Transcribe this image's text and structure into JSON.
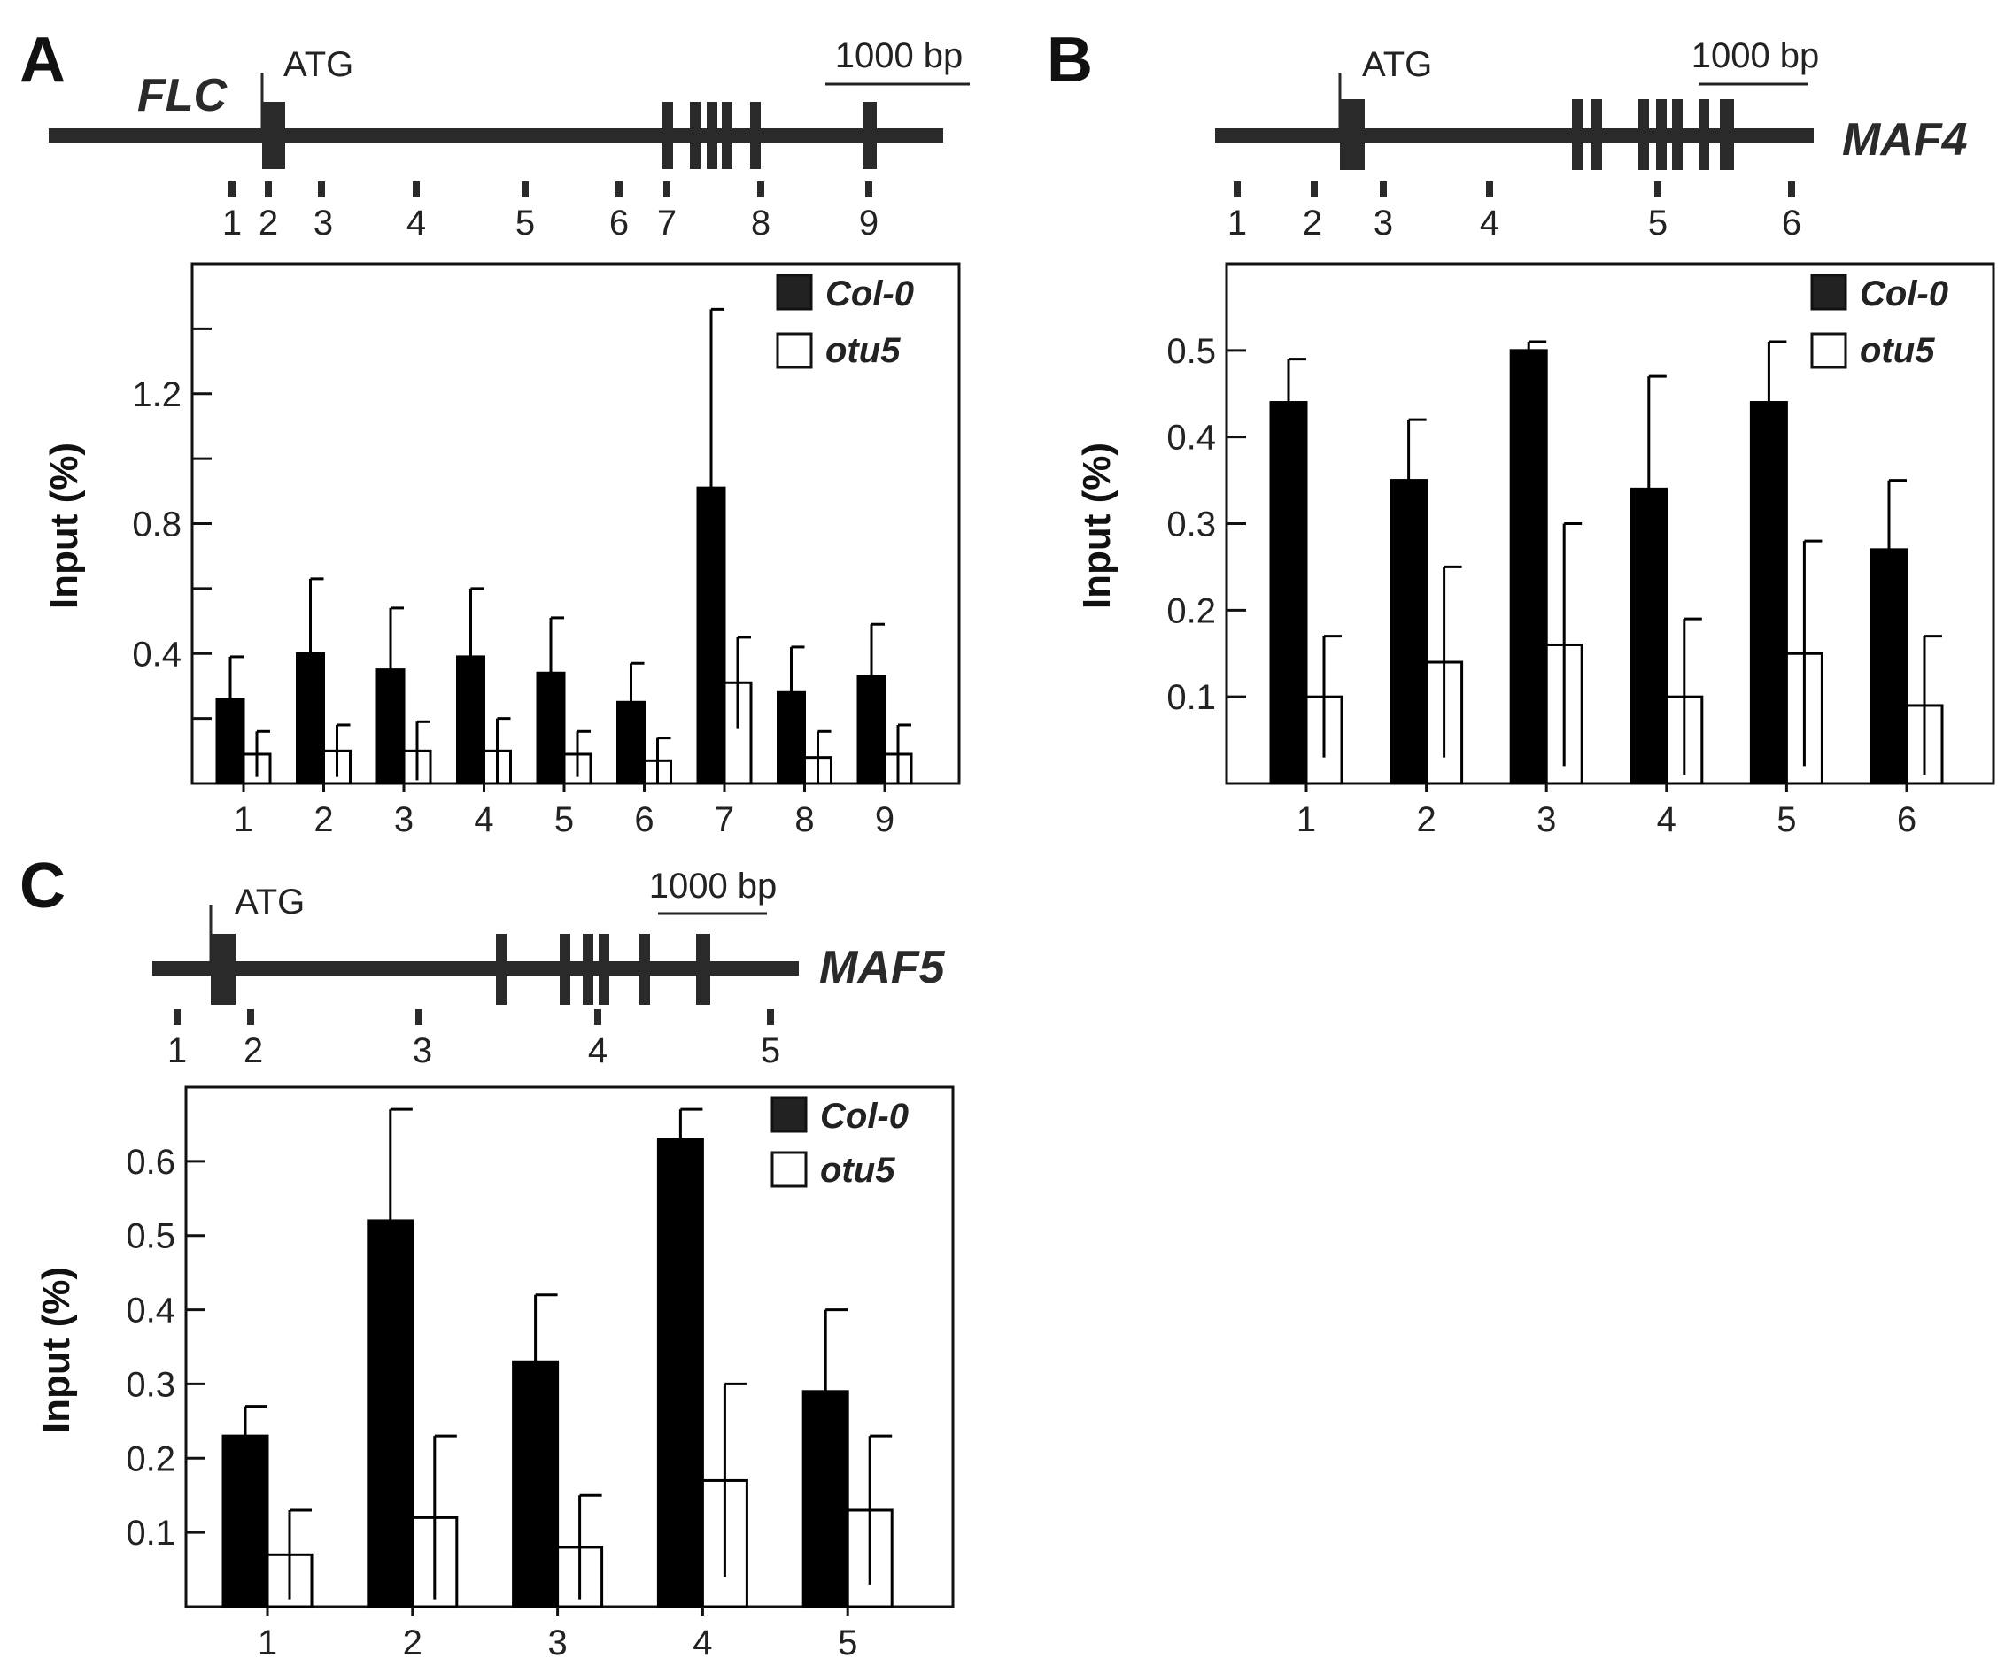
{
  "chart_data": [
    {
      "panel": "A",
      "type": "bar",
      "gene": "FLC",
      "atg_label": "ATG",
      "scale_bar_label": "1000 bp",
      "primer_labels": [
        "1",
        "2",
        "3",
        "4",
        "5",
        "6",
        "7",
        "8",
        "9"
      ],
      "categories": [
        "1",
        "2",
        "3",
        "4",
        "5",
        "6",
        "7",
        "8",
        "9"
      ],
      "ylabel": "Input (%)",
      "ylim": [
        0,
        1.6
      ],
      "yticks": [
        {
          "value": 0.4,
          "label": "0.4"
        },
        {
          "value": 0.8,
          "label": "0.8"
        },
        {
          "value": 1.2,
          "label": "1.2"
        }
      ],
      "minor_yticks": [
        0.2,
        0.6,
        1.0,
        1.4
      ],
      "legend_position": "top-right",
      "series": [
        {
          "name": "Col-0",
          "color": "#000000",
          "values": [
            0.26,
            0.4,
            0.35,
            0.39,
            0.34,
            0.25,
            0.91,
            0.28,
            0.33
          ],
          "errors": [
            0.13,
            0.23,
            0.19,
            0.21,
            0.17,
            0.12,
            0.55,
            0.14,
            0.16
          ]
        },
        {
          "name": "otu5",
          "color": "#ffffff",
          "values": [
            0.09,
            0.1,
            0.1,
            0.1,
            0.09,
            0.07,
            0.31,
            0.08,
            0.09
          ],
          "errors": [
            0.07,
            0.08,
            0.09,
            0.1,
            0.07,
            0.07,
            0.14,
            0.08,
            0.09
          ]
        }
      ]
    },
    {
      "panel": "B",
      "type": "bar",
      "gene": "MAF4",
      "atg_label": "ATG",
      "scale_bar_label": "1000 bp",
      "primer_labels": [
        "1",
        "2",
        "3",
        "4",
        "5",
        "6"
      ],
      "categories": [
        "1",
        "2",
        "3",
        "4",
        "5",
        "6"
      ],
      "ylabel": "Input (%)",
      "ylim": [
        0,
        0.6
      ],
      "yticks": [
        {
          "value": 0.1,
          "label": "0.1"
        },
        {
          "value": 0.2,
          "label": "0.2"
        },
        {
          "value": 0.3,
          "label": "0.3"
        },
        {
          "value": 0.4,
          "label": "0.4"
        },
        {
          "value": 0.5,
          "label": "0.5"
        }
      ],
      "minor_yticks": [],
      "legend_position": "top-right",
      "series": [
        {
          "name": "Col-0",
          "color": "#000000",
          "values": [
            0.44,
            0.35,
            0.5,
            0.34,
            0.44,
            0.27
          ],
          "errors": [
            0.05,
            0.07,
            0.01,
            0.13,
            0.07,
            0.08
          ]
        },
        {
          "name": "otu5",
          "color": "#ffffff",
          "values": [
            0.1,
            0.14,
            0.16,
            0.1,
            0.15,
            0.09
          ],
          "errors": [
            0.07,
            0.11,
            0.14,
            0.09,
            0.13,
            0.08
          ]
        }
      ]
    },
    {
      "panel": "C",
      "type": "bar",
      "gene": "MAF5",
      "atg_label": "ATG",
      "scale_bar_label": "1000 bp",
      "primer_labels": [
        "1",
        "2",
        "3",
        "4",
        "5"
      ],
      "categories": [
        "1",
        "2",
        "3",
        "4",
        "5"
      ],
      "ylabel": "Input (%)",
      "ylim": [
        0,
        0.7
      ],
      "yticks": [
        {
          "value": 0.1,
          "label": "0.1"
        },
        {
          "value": 0.2,
          "label": "0.2"
        },
        {
          "value": 0.3,
          "label": "0.3"
        },
        {
          "value": 0.4,
          "label": "0.4"
        },
        {
          "value": 0.5,
          "label": "0.5"
        },
        {
          "value": 0.6,
          "label": "0.6"
        }
      ],
      "minor_yticks": [],
      "legend_position": "top-right",
      "series": [
        {
          "name": "Col-0",
          "color": "#000000",
          "values": [
            0.23,
            0.52,
            0.33,
            0.63,
            0.29
          ],
          "errors": [
            0.04,
            0.15,
            0.09,
            0.04,
            0.11
          ]
        },
        {
          "name": "otu5",
          "color": "#ffffff",
          "values": [
            0.07,
            0.12,
            0.08,
            0.17,
            0.13
          ],
          "errors": [
            0.06,
            0.11,
            0.07,
            0.13,
            0.1
          ]
        }
      ]
    }
  ]
}
